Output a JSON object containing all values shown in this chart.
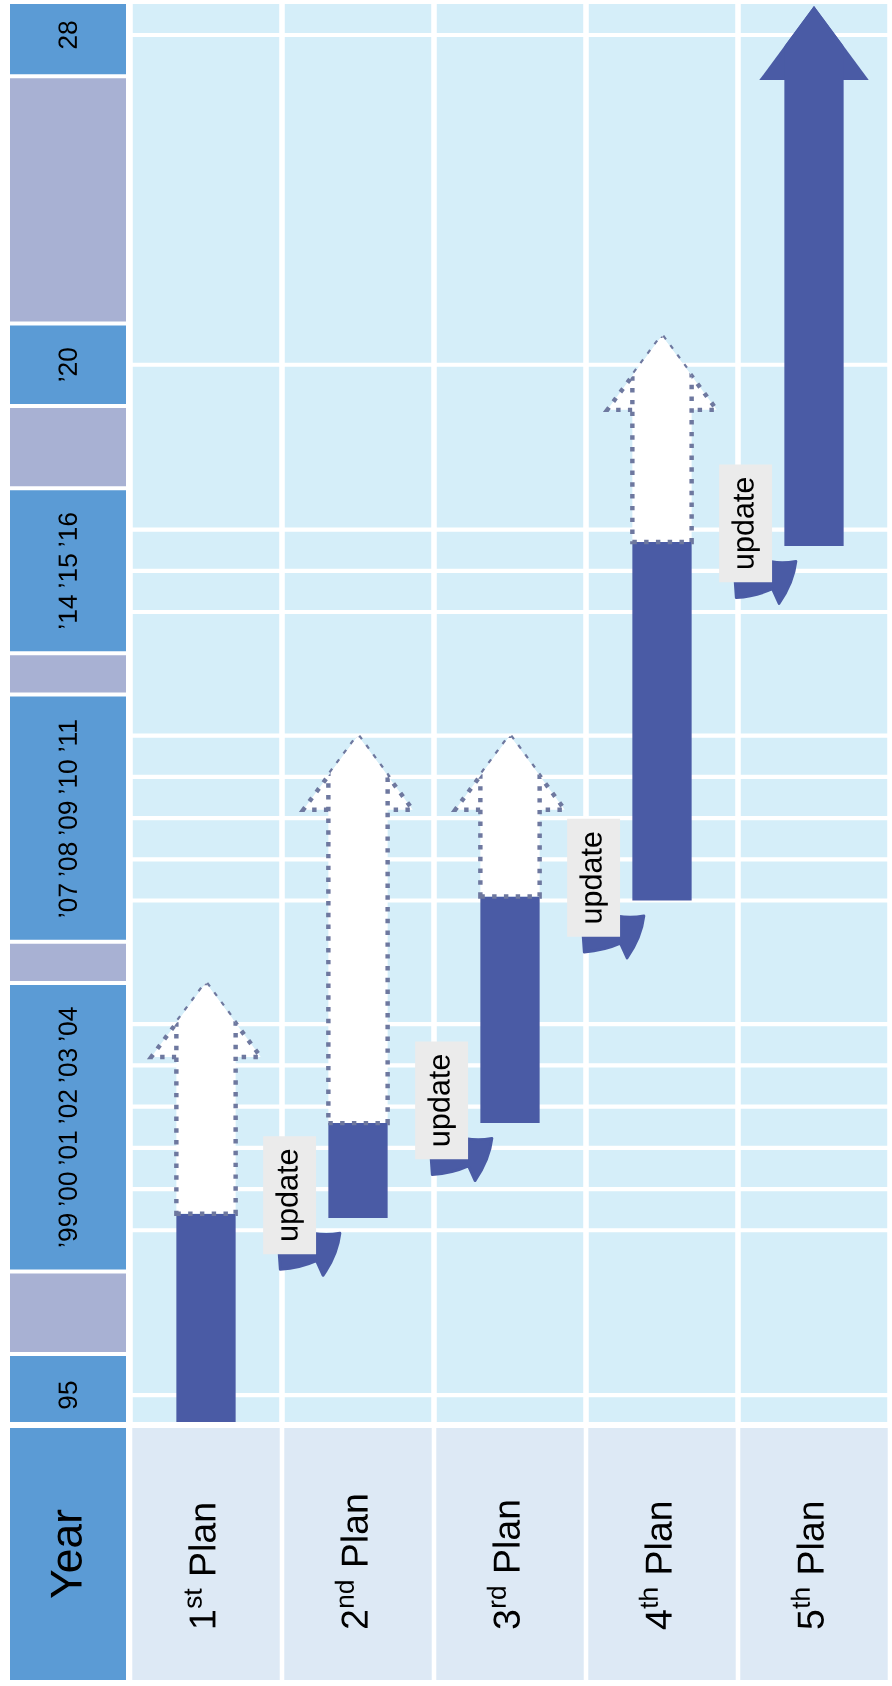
{
  "chart_data": {
    "type": "bar",
    "categories": [
      "1$^{st}$ Plan",
      "2$^{nd}$ Plan",
      "3$^{rd}$ Plan",
      "4$^{th}$ Plan",
      "5$^{th}$ Plan"
    ],
    "ylabel": "Year",
    "ylim": [
      1994.3,
      2028.8
    ],
    "yticks": [
      {
        "value": 1995,
        "label": "95"
      },
      {
        "value": 1999,
        "label": "’99"
      },
      {
        "value": 2000,
        "label": "’00"
      },
      {
        "value": 2001,
        "label": "’01"
      },
      {
        "value": 2002,
        "label": "’02"
      },
      {
        "value": 2003,
        "label": "’03"
      },
      {
        "value": 2004,
        "label": "’04"
      },
      {
        "value": 2007,
        "label": "’07"
      },
      {
        "value": 2008,
        "label": "’08"
      },
      {
        "value": 2009,
        "label": "’09"
      },
      {
        "value": 2010,
        "label": "’10"
      },
      {
        "value": 2011,
        "label": "’11"
      },
      {
        "value": 2014,
        "label": "’14"
      },
      {
        "value": 2015,
        "label": "’15"
      },
      {
        "value": 2016,
        "label": "’16"
      },
      {
        "value": 2020,
        "label": "’20"
      },
      {
        "value": 2028,
        "label": "28"
      }
    ],
    "series": [
      {
        "color": "#4a5ba5",
        "base": [
          1994.3,
          1999.3,
          2001.6,
          2007.0,
          2015.6
        ],
        "values": [
          5.1,
          2.3,
          5.5,
          8.7,
          13.1
        ]
      },
      {
        "color": "#ffffff",
        "line_style": "dotted",
        "base": [
          1999.4,
          2001.6,
          2007.1,
          2015.7,
          null
        ],
        "values": [
          5.6,
          9.4,
          3.9,
          5.0,
          null
        ]
      }
    ],
    "grid": true,
    "annotations": [
      "update",
      "update",
      "update",
      "update"
    ]
  }
}
